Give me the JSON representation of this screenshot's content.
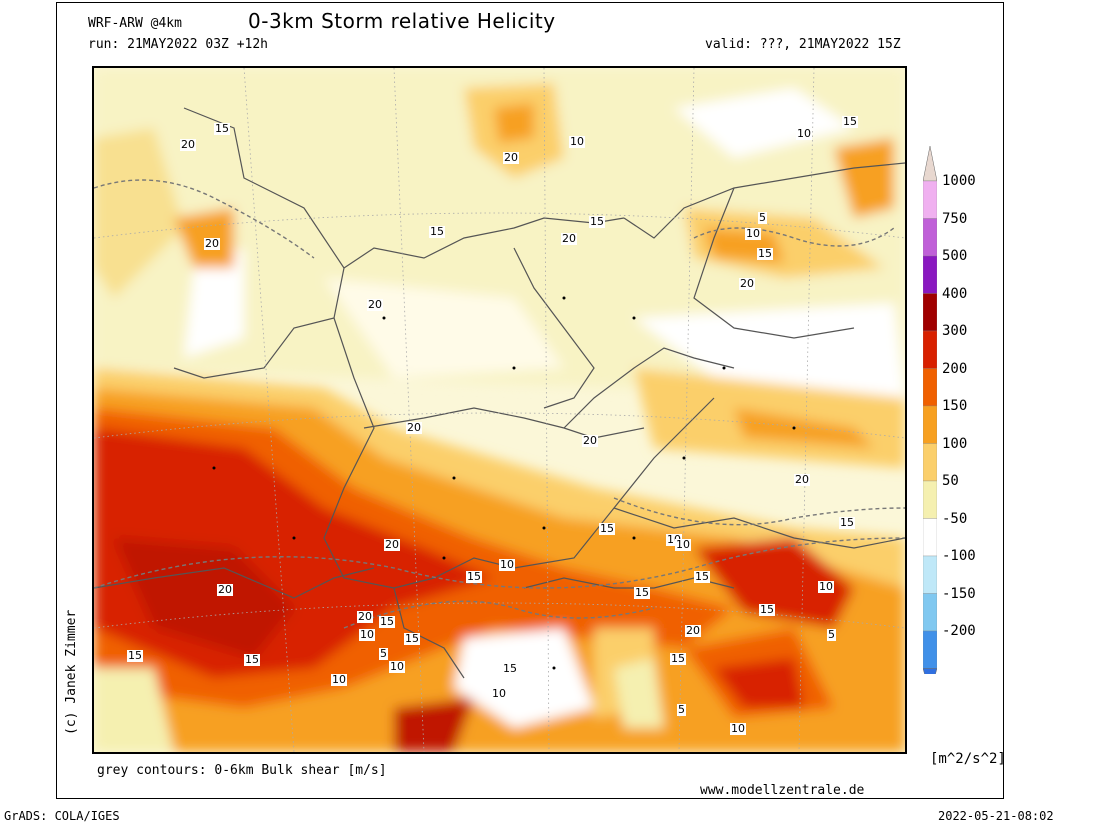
{
  "header": {
    "model": "WRF-ARW @4km",
    "title": "0-3km Storm relative Helicity",
    "run": "run: 21MAY2022 03Z +12h",
    "valid": "valid: ???, 21MAY2022 15Z"
  },
  "credit": "(c) Janek Zimmer",
  "footer": {
    "contours_note": "grey contours: 0-6km Bulk shear [m/s]",
    "website": "www.modellzentrale.de",
    "grads": "GrADS: COLA/IGES",
    "timestamp": "2022-05-21-08:02"
  },
  "colorbar": {
    "unit": "[m^2/s^2]",
    "ticks": [
      "1000",
      "750",
      "500",
      "400",
      "300",
      "200",
      "150",
      "100",
      "50",
      "-50",
      "-100",
      "-150",
      "-200"
    ],
    "colors": [
      "#f0b0f0",
      "#c060d8",
      "#8a18c0",
      "#a00000",
      "#d82000",
      "#f06000",
      "#f7a021",
      "#fbcf6b",
      "#f5f0b0",
      "#ffffff",
      "#bfe8f8",
      "#80c8f0",
      "#4090e8"
    ]
  },
  "contour_labels": [
    "15",
    "20",
    "20",
    "20",
    "15",
    "20",
    "20",
    "10",
    "15",
    "15",
    "10",
    "5",
    "10",
    "15",
    "20",
    "20",
    "20",
    "20",
    "20",
    "15",
    "10",
    "15",
    "10",
    "15",
    "15",
    "10",
    "15",
    "15",
    "20",
    "15",
    "5",
    "5",
    "10",
    "10",
    "15",
    "10",
    "15",
    "15",
    "10",
    "10",
    "5",
    "10",
    "20",
    "15",
    "20",
    "15"
  ]
}
